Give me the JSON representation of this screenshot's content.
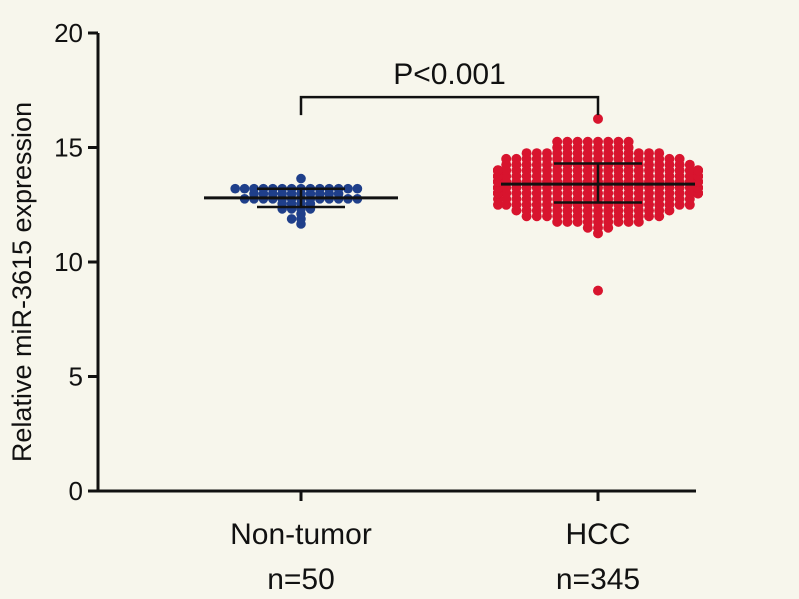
{
  "chart_data": {
    "type": "scatter",
    "title": "",
    "xlabel": "",
    "ylabel": "Relative miR-3615 expression",
    "ylim": [
      0,
      20
    ],
    "yticks": [
      0,
      5,
      10,
      15,
      20
    ],
    "grid": false,
    "categories": [
      "Non-tumor",
      "HCC"
    ],
    "series": [
      {
        "category": "Non-tumor",
        "n_label": "n=50",
        "color": "#1f3f8a",
        "n": 50,
        "mean": 12.8,
        "sd_low": 12.4,
        "sd_high": 13.2,
        "min": 11.6,
        "max": 13.6
      },
      {
        "category": "HCC",
        "n_label": "n=345",
        "color": "#d8142e",
        "n": 345,
        "mean": 13.4,
        "sd_low": 12.6,
        "sd_high": 14.3,
        "min": 8.8,
        "max": 16.2
      }
    ],
    "annotation": {
      "text": "P<0.001",
      "bracket_y": 17.2
    }
  }
}
